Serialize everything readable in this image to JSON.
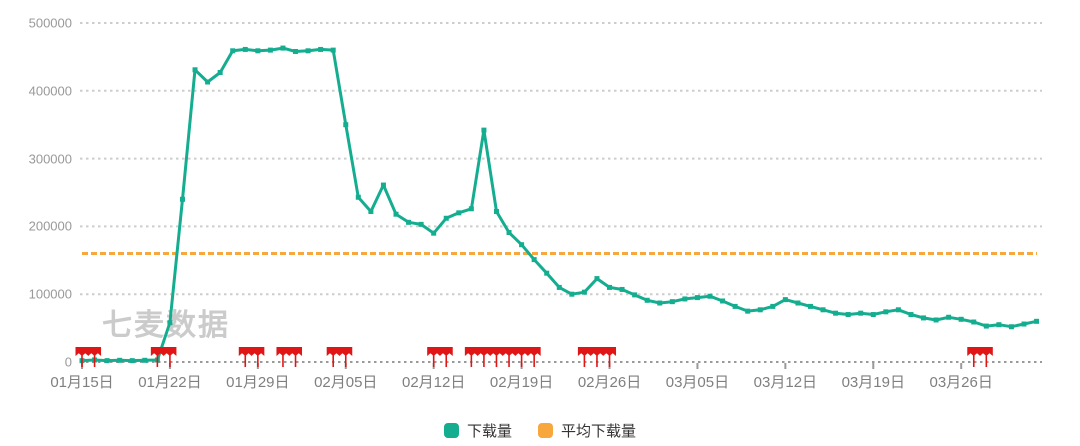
{
  "watermark": {
    "text": "七麦数据"
  },
  "legend": {
    "items": [
      {
        "label": "下载量",
        "color": "#15ad90"
      },
      {
        "label": "平均下载量",
        "color": "#f8a73c"
      }
    ]
  },
  "colors": {
    "line": "#15ad90",
    "average_line": "#f8a73c",
    "flag": "#e01616",
    "gridline": "#cdcdcd",
    "axis_line": "#9a9a9a",
    "y_label": "#999999",
    "x_label": "#7f7f7f",
    "legend_text": "#333333",
    "watermark": "#cbcbcb",
    "background": "#ffffff"
  },
  "chart_data": {
    "type": "line",
    "title": "",
    "xlabel": "",
    "ylabel": "",
    "ylim": [
      0,
      500000
    ],
    "grid": "horizontal-dotted",
    "legend_position": "bottom-center",
    "y_ticks": [
      0,
      100000,
      200000,
      300000,
      400000,
      500000
    ],
    "y_tick_labels": [
      "0",
      "100000",
      "200000",
      "300000",
      "400000",
      "500000"
    ],
    "x_tick_day_indices": [
      0,
      7,
      14,
      21,
      28,
      35,
      42,
      49,
      56,
      63,
      70
    ],
    "x_tick_labels": [
      "01月15日",
      "01月22日",
      "01月29日",
      "02月05日",
      "02月12日",
      "02月19日",
      "02月26日",
      "03月05日",
      "03月12日",
      "03月19日",
      "03月26日"
    ],
    "num_days": 77,
    "series": [
      {
        "name": "下载量",
        "type": "line",
        "color": "#15ad90",
        "marker": "square",
        "values": [
          2000,
          3000,
          2000,
          2500,
          2000,
          2500,
          3000,
          58000,
          240000,
          431000,
          413000,
          427000,
          459000,
          461000,
          459000,
          460000,
          463000,
          458000,
          459000,
          461000,
          460000,
          350000,
          243000,
          222000,
          261000,
          218000,
          206000,
          203000,
          190000,
          212000,
          220000,
          226000,
          342000,
          222000,
          191000,
          173000,
          151000,
          131000,
          110000,
          100000,
          103000,
          123000,
          110000,
          107000,
          99000,
          91000,
          87000,
          89000,
          93000,
          95000,
          97000,
          90000,
          82000,
          75000,
          77000,
          82000,
          92000,
          87000,
          82000,
          77000,
          72000,
          70000,
          72000,
          70000,
          74000,
          77000,
          70000,
          65000,
          62000,
          66000,
          63000,
          59000,
          53000,
          55000,
          52000,
          56000,
          60000
        ]
      },
      {
        "name": "平均下载量",
        "type": "horizontal-dashed-line",
        "color": "#f8a73c",
        "value": 160000
      }
    ],
    "flag_markers": {
      "color": "#e01616",
      "day_indices": [
        0,
        1,
        6,
        7,
        13,
        14,
        16,
        17,
        20,
        21,
        28,
        29,
        31,
        32,
        33,
        34,
        35,
        36,
        40,
        41,
        42,
        71,
        72
      ]
    }
  }
}
